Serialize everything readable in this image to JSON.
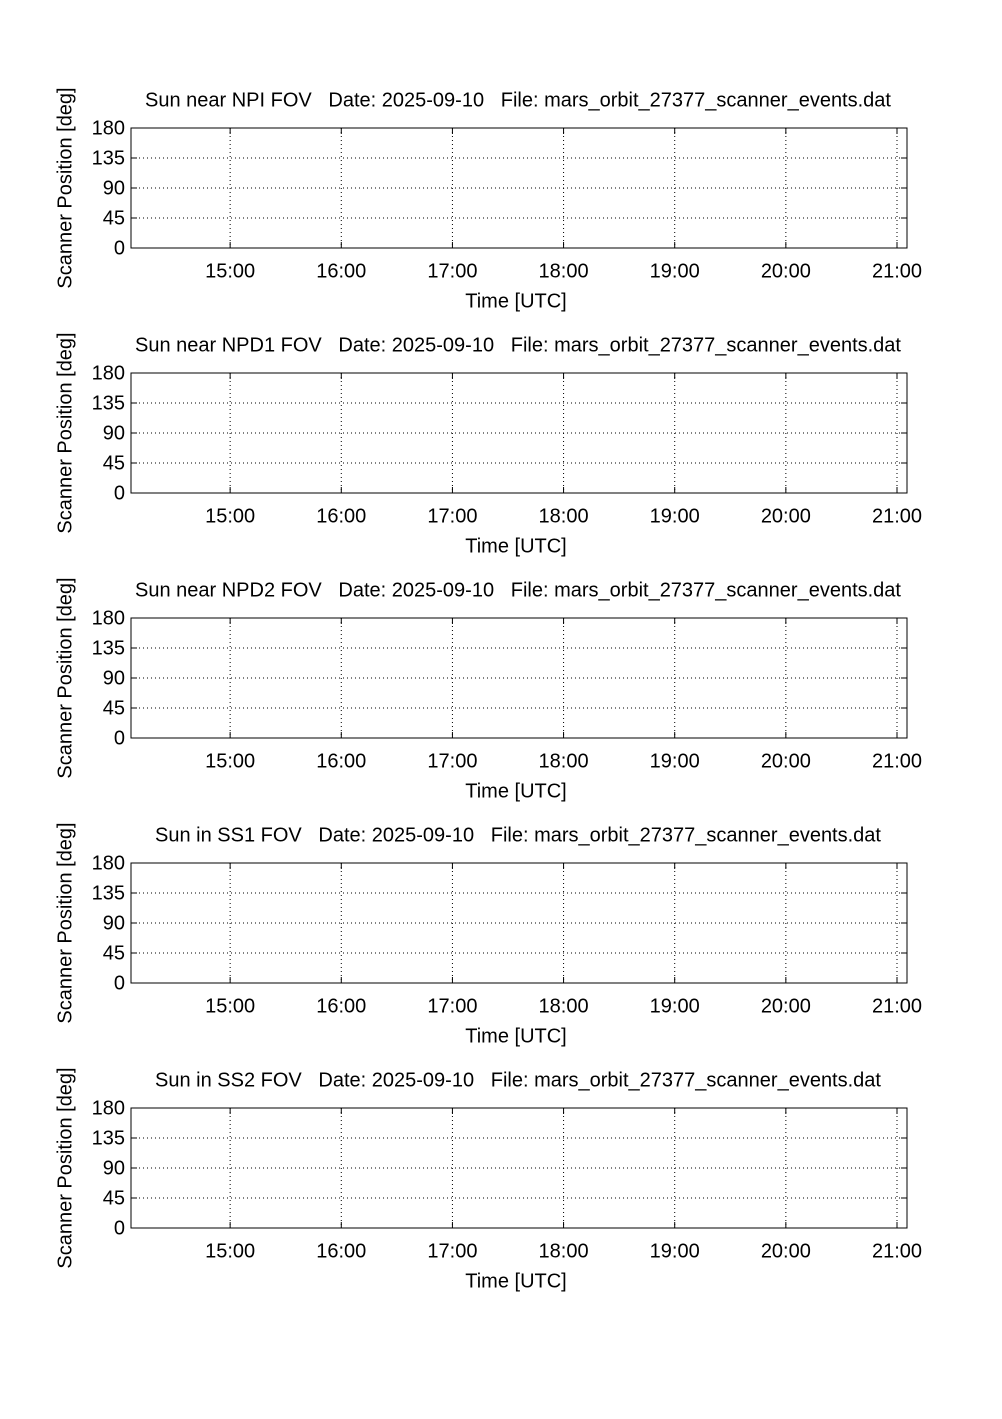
{
  "chart_data": [
    {
      "type": "line",
      "title": "Sun near NPI FOV   Date: 2025-09-10   File: mars_orbit_27377_scanner_events.dat",
      "x_label": "Time [UTC]",
      "y_label": "Scanner Position [deg]",
      "xlim": [
        14.108,
        21.09
      ],
      "xticks": [
        {
          "value": 15,
          "label": "15:00"
        },
        {
          "value": 16,
          "label": "16:00"
        },
        {
          "value": 17,
          "label": "17:00"
        },
        {
          "value": 18,
          "label": "18:00"
        },
        {
          "value": 19,
          "label": "19:00"
        },
        {
          "value": 20,
          "label": "20:00"
        },
        {
          "value": 21,
          "label": "21:00"
        }
      ],
      "ylim": [
        0,
        180
      ],
      "yticks": [
        0,
        45,
        90,
        135,
        180
      ],
      "grid": true
    },
    {
      "type": "line",
      "title": "Sun near NPD1 FOV   Date: 2025-09-10   File: mars_orbit_27377_scanner_events.dat",
      "x_label": "Time [UTC]",
      "y_label": "Scanner Position [deg]",
      "xlim": [
        14.108,
        21.09
      ],
      "xticks": [
        {
          "value": 15,
          "label": "15:00"
        },
        {
          "value": 16,
          "label": "16:00"
        },
        {
          "value": 17,
          "label": "17:00"
        },
        {
          "value": 18,
          "label": "18:00"
        },
        {
          "value": 19,
          "label": "19:00"
        },
        {
          "value": 20,
          "label": "20:00"
        },
        {
          "value": 21,
          "label": "21:00"
        }
      ],
      "ylim": [
        0,
        180
      ],
      "yticks": [
        0,
        45,
        90,
        135,
        180
      ],
      "grid": true
    },
    {
      "type": "line",
      "title": "Sun near NPD2 FOV   Date: 2025-09-10   File: mars_orbit_27377_scanner_events.dat",
      "x_label": "Time [UTC]",
      "y_label": "Scanner Position [deg]",
      "xlim": [
        14.108,
        21.09
      ],
      "xticks": [
        {
          "value": 15,
          "label": "15:00"
        },
        {
          "value": 16,
          "label": "16:00"
        },
        {
          "value": 17,
          "label": "17:00"
        },
        {
          "value": 18,
          "label": "18:00"
        },
        {
          "value": 19,
          "label": "19:00"
        },
        {
          "value": 20,
          "label": "20:00"
        },
        {
          "value": 21,
          "label": "21:00"
        }
      ],
      "ylim": [
        0,
        180
      ],
      "yticks": [
        0,
        45,
        90,
        135,
        180
      ],
      "grid": true
    },
    {
      "type": "line",
      "title": "Sun in SS1 FOV   Date: 2025-09-10   File: mars_orbit_27377_scanner_events.dat",
      "x_label": "Time [UTC]",
      "y_label": "Scanner Position [deg]",
      "xlim": [
        14.108,
        21.09
      ],
      "xticks": [
        {
          "value": 15,
          "label": "15:00"
        },
        {
          "value": 16,
          "label": "16:00"
        },
        {
          "value": 17,
          "label": "17:00"
        },
        {
          "value": 18,
          "label": "18:00"
        },
        {
          "value": 19,
          "label": "19:00"
        },
        {
          "value": 20,
          "label": "20:00"
        },
        {
          "value": 21,
          "label": "21:00"
        }
      ],
      "ylim": [
        0,
        180
      ],
      "yticks": [
        0,
        45,
        90,
        135,
        180
      ],
      "grid": true
    },
    {
      "type": "line",
      "title": "Sun in SS2 FOV   Date: 2025-09-10   File: mars_orbit_27377_scanner_events.dat",
      "x_label": "Time [UTC]",
      "y_label": "Scanner Position [deg]",
      "xlim": [
        14.108,
        21.09
      ],
      "xticks": [
        {
          "value": 15,
          "label": "15:00"
        },
        {
          "value": 16,
          "label": "16:00"
        },
        {
          "value": 17,
          "label": "17:00"
        },
        {
          "value": 18,
          "label": "18:00"
        },
        {
          "value": 19,
          "label": "19:00"
        },
        {
          "value": 20,
          "label": "20:00"
        },
        {
          "value": 21,
          "label": "21:00"
        }
      ],
      "ylim": [
        0,
        180
      ],
      "yticks": [
        0,
        45,
        90,
        135,
        180
      ],
      "grid": true
    }
  ]
}
